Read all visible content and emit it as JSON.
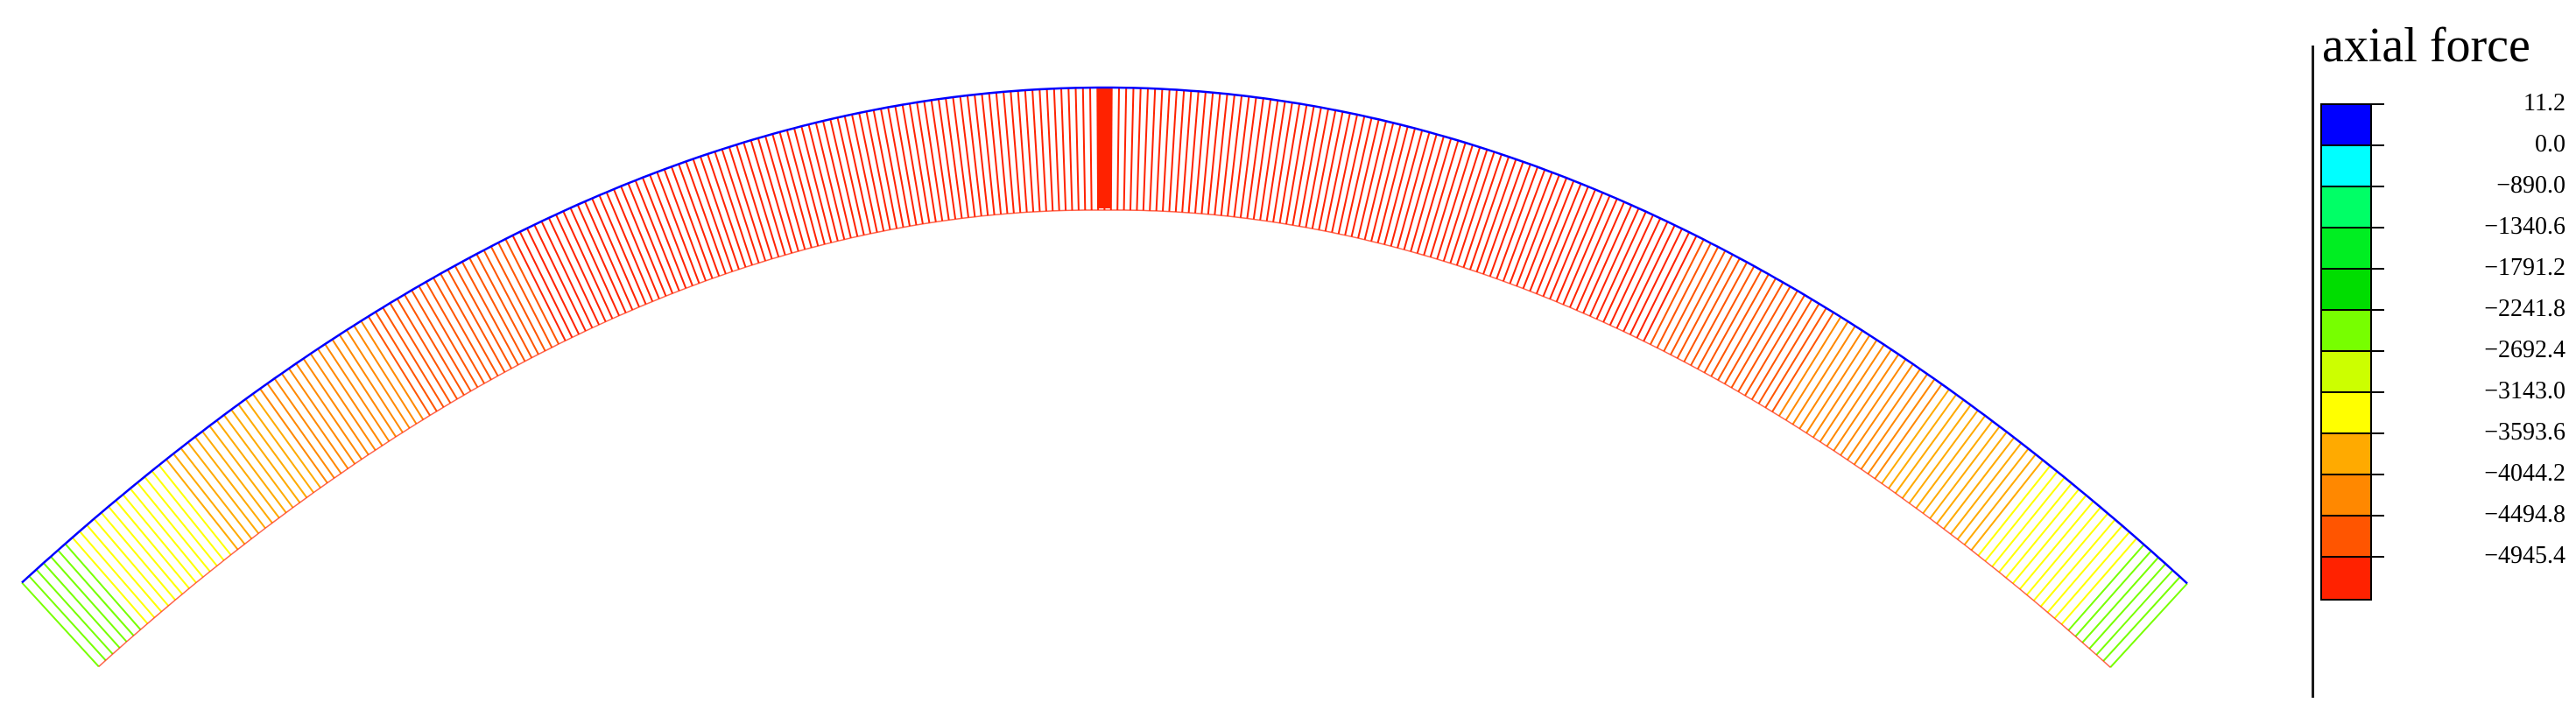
{
  "legend": {
    "title": "axial force",
    "levels": [
      {
        "label": "11.2",
        "color": "#0000ff"
      },
      {
        "label": "0.0",
        "color": "#00ffff"
      },
      {
        "label": "−890.0",
        "color": "#00ff66"
      },
      {
        "label": "−1340.6",
        "color": "#00ee22"
      },
      {
        "label": "−1791.2",
        "color": "#00dd00"
      },
      {
        "label": "−2241.8",
        "color": "#77ff00"
      },
      {
        "label": "−2692.4",
        "color": "#ccff00"
      },
      {
        "label": "−3143.0",
        "color": "#ffff00"
      },
      {
        "label": "−3593.6",
        "color": "#ffaa00"
      },
      {
        "label": "−4044.2",
        "color": "#ff8800"
      },
      {
        "label": "−4494.8",
        "color": "#ff5500"
      },
      {
        "label": "−4945.4",
        "color": "#ff2200"
      }
    ]
  },
  "colors": {
    "outline": "#0000ff",
    "background": "#ffffff"
  }
}
